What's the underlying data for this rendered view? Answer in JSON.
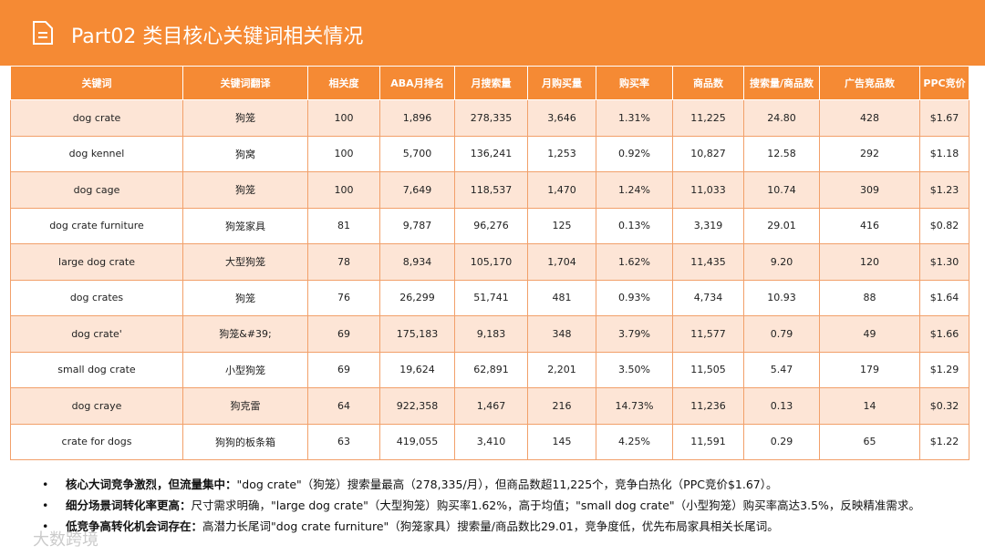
{
  "header": {
    "title": "Part02 类目核心关键词相关情况"
  },
  "table": {
    "columns": [
      "关键词",
      "关键词翻译",
      "相关度",
      "ABA月排名",
      "月搜索量",
      "月购买量",
      "购买率",
      "商品数",
      "搜索量/商品数",
      "广告竞品数",
      "PPC竞价"
    ],
    "rows": [
      [
        "dog crate",
        "狗笼",
        "100",
        "1,896",
        "278,335",
        "3,646",
        "1.31%",
        "11,225",
        "24.80",
        "428",
        "$1.67"
      ],
      [
        "dog kennel",
        "狗窝",
        "100",
        "5,700",
        "136,241",
        "1,253",
        "0.92%",
        "10,827",
        "12.58",
        "292",
        "$1.18"
      ],
      [
        "dog cage",
        "狗笼",
        "100",
        "7,649",
        "118,537",
        "1,470",
        "1.24%",
        "11,033",
        "10.74",
        "309",
        "$1.23"
      ],
      [
        "dog crate furniture",
        "狗笼家具",
        "81",
        "9,787",
        "96,276",
        "125",
        "0.13%",
        "3,319",
        "29.01",
        "416",
        "$0.82"
      ],
      [
        "large dog crate",
        "大型狗笼",
        "78",
        "8,934",
        "105,170",
        "1,704",
        "1.62%",
        "11,435",
        "9.20",
        "120",
        "$1.30"
      ],
      [
        "dog crates",
        "狗笼",
        "76",
        "26,299",
        "51,741",
        "481",
        "0.93%",
        "4,734",
        "10.93",
        "88",
        "$1.64"
      ],
      [
        "dog crate'",
        "狗笼&#39;",
        "69",
        "175,183",
        "9,183",
        "348",
        "3.79%",
        "11,577",
        "0.79",
        "49",
        "$1.66"
      ],
      [
        "small dog crate",
        "小型狗笼",
        "69",
        "19,624",
        "62,891",
        "2,201",
        "3.50%",
        "11,505",
        "5.47",
        "179",
        "$1.29"
      ],
      [
        "dog craye",
        "狗克雷",
        "64",
        "922,358",
        "1,467",
        "216",
        "14.73%",
        "11,236",
        "0.13",
        "14",
        "$0.32"
      ],
      [
        "crate for dogs",
        "狗狗的板条箱",
        "63",
        "419,055",
        "3,410",
        "145",
        "4.25%",
        "11,591",
        "0.29",
        "65",
        "$1.22"
      ]
    ]
  },
  "bullets": [
    {
      "lead": "核心大词竞争激烈，但流量集中：",
      "text": "\"dog crate\"（狗笼）搜索量最高（278,335/月），但商品数超11,225个，竞争白热化（PPC竞价$1.67）。"
    },
    {
      "lead": "细分场景词转化率更高：",
      "text": "尺寸需求明确，\"large dog crate\"（大型狗笼）购买率1.62%，高于均值；\"small dog crate\"（小型狗笼）购买率高达3.5%，反映精准需求。"
    },
    {
      "lead": "低竞争高转化机会词存在：",
      "text": "高潜力长尾词\"dog crate furniture\"（狗笼家具）搜索量/商品数比29.01，竞争度低，优先布局家具相关长尾词。"
    }
  ],
  "watermark": "大数跨境"
}
